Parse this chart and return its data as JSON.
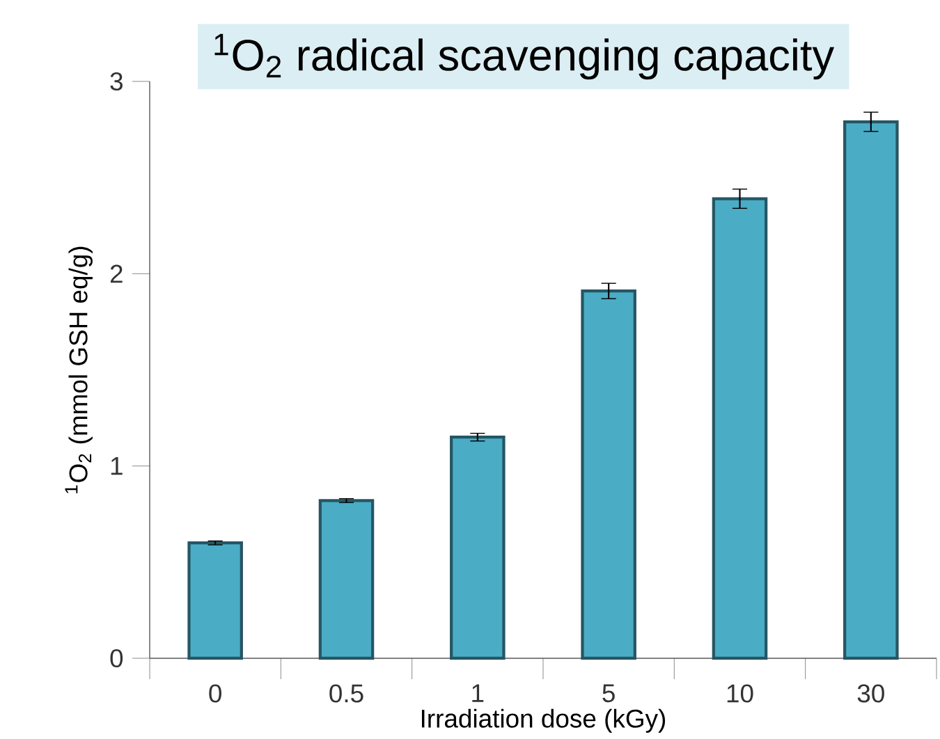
{
  "chart_data": {
    "type": "bar",
    "title": "$^{1}$O$_{2}$ radical scavenging capacity",
    "xlabel": "Irradiation dose (kGy)",
    "ylabel": "$^{1}$O$_{2}$ (mmol GSH eq/g)",
    "categories": [
      "0",
      "0.5",
      "1",
      "5",
      "10",
      "30"
    ],
    "values": [
      0.6,
      0.82,
      1.15,
      1.91,
      2.39,
      2.79
    ],
    "errors": [
      0.01,
      0.01,
      0.02,
      0.04,
      0.05,
      0.05
    ],
    "color": "#4bacc6",
    "ylim": [
      0,
      3
    ],
    "yticks": [
      0,
      1,
      2,
      3
    ]
  }
}
